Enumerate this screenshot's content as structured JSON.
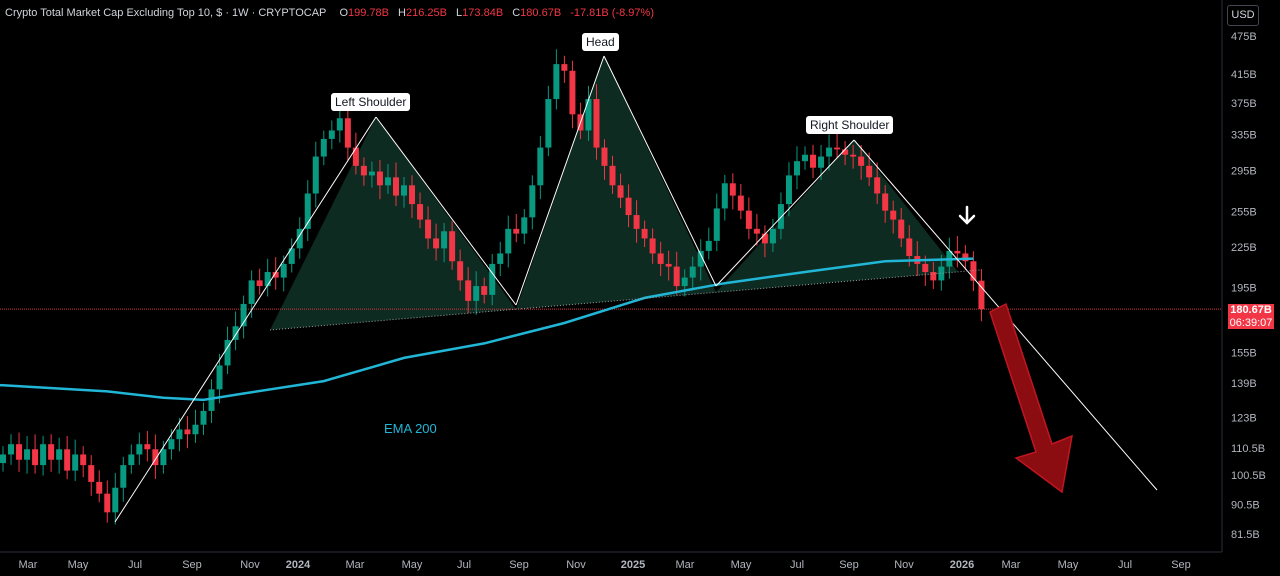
{
  "header": {
    "title": "Crypto Total Market Cap Excluding Top 10, $ · 1W · CRYPTOCAP",
    "ohlc": [
      {
        "label": "O",
        "value": "199.78B"
      },
      {
        "label": "H",
        "value": "216.25B"
      },
      {
        "label": "L",
        "value": "173.84B"
      },
      {
        "label": "C",
        "value": "180.67B"
      }
    ],
    "change": "-17.81B (-8.97%)"
  },
  "currency_button": "USD",
  "last_price": {
    "price": "180.67B",
    "countdown": "06:39:07"
  },
  "colors": {
    "up": "#089981",
    "down": "#f23645",
    "ema": "#21b6d6",
    "pattern_fill": "#0f3326",
    "arrow": "#8b0d12",
    "grid": "#1c1f26"
  },
  "chart_data": {
    "type": "candlestick",
    "title": "Crypto Total Market Cap Excluding Top 10",
    "yscale": "log",
    "y_ticks": [
      "475B",
      "415B",
      "375B",
      "335B",
      "295B",
      "255B",
      "225B",
      "195B",
      "155B",
      "139B",
      "123B",
      "110.5B",
      "100.5B",
      "90.5B",
      "81.5B"
    ],
    "x_ticks": [
      "Mar",
      "May",
      "Jul",
      "Sep",
      "Nov",
      "2024",
      "Mar",
      "May",
      "Jul",
      "Sep",
      "Nov",
      "2025",
      "Mar",
      "May",
      "Jul",
      "Sep",
      "Nov",
      "2026",
      "Mar",
      "May",
      "Jul",
      "Sep"
    ],
    "last_close": 180.67,
    "candles_close_approx": [
      [
        0,
        108
      ],
      [
        1,
        112
      ],
      [
        2,
        106
      ],
      [
        3,
        110
      ],
      [
        4,
        104
      ],
      [
        5,
        112
      ],
      [
        6,
        106
      ],
      [
        7,
        110
      ],
      [
        8,
        102
      ],
      [
        9,
        108
      ],
      [
        10,
        104
      ],
      [
        11,
        98
      ],
      [
        12,
        94
      ],
      [
        13,
        88
      ],
      [
        14,
        96
      ],
      [
        15,
        104
      ],
      [
        16,
        108
      ],
      [
        17,
        112
      ],
      [
        18,
        110
      ],
      [
        19,
        104
      ],
      [
        20,
        110
      ],
      [
        21,
        114
      ],
      [
        22,
        118
      ],
      [
        23,
        116
      ],
      [
        24,
        120
      ],
      [
        25,
        126
      ],
      [
        26,
        136
      ],
      [
        27,
        148
      ],
      [
        28,
        162
      ],
      [
        29,
        170
      ],
      [
        30,
        184
      ],
      [
        31,
        200
      ],
      [
        32,
        196
      ],
      [
        33,
        206
      ],
      [
        34,
        202
      ],
      [
        35,
        212
      ],
      [
        36,
        224
      ],
      [
        37,
        240
      ],
      [
        38,
        272
      ],
      [
        39,
        310
      ],
      [
        40,
        330
      ],
      [
        41,
        340
      ],
      [
        42,
        355
      ],
      [
        43,
        320
      ],
      [
        44,
        300
      ],
      [
        45,
        290
      ],
      [
        46,
        294
      ],
      [
        47,
        280
      ],
      [
        48,
        288
      ],
      [
        49,
        270
      ],
      [
        50,
        280
      ],
      [
        51,
        262
      ],
      [
        52,
        248
      ],
      [
        53,
        232
      ],
      [
        54,
        224
      ],
      [
        55,
        238
      ],
      [
        56,
        214
      ],
      [
        57,
        200
      ],
      [
        58,
        186
      ],
      [
        59,
        196
      ],
      [
        60,
        190
      ],
      [
        61,
        212
      ],
      [
        62,
        220
      ],
      [
        63,
        240
      ],
      [
        64,
        236
      ],
      [
        65,
        250
      ],
      [
        66,
        280
      ],
      [
        67,
        320
      ],
      [
        68,
        380
      ],
      [
        69,
        430
      ],
      [
        70,
        420
      ],
      [
        71,
        360
      ],
      [
        72,
        340
      ],
      [
        73,
        380
      ],
      [
        74,
        320
      ],
      [
        75,
        300
      ],
      [
        76,
        280
      ],
      [
        77,
        268
      ],
      [
        78,
        252
      ],
      [
        79,
        240
      ],
      [
        80,
        232
      ],
      [
        81,
        220
      ],
      [
        82,
        212
      ],
      [
        83,
        210
      ],
      [
        84,
        196
      ],
      [
        85,
        202
      ],
      [
        86,
        210
      ],
      [
        87,
        222
      ],
      [
        88,
        230
      ],
      [
        89,
        258
      ],
      [
        90,
        282
      ],
      [
        91,
        270
      ],
      [
        92,
        256
      ],
      [
        93,
        240
      ],
      [
        94,
        236
      ],
      [
        95,
        228
      ],
      [
        96,
        240
      ],
      [
        97,
        262
      ],
      [
        98,
        290
      ],
      [
        99,
        305
      ],
      [
        100,
        312
      ],
      [
        101,
        298
      ],
      [
        102,
        310
      ],
      [
        103,
        320
      ],
      [
        104,
        318
      ],
      [
        105,
        312
      ],
      [
        106,
        310
      ],
      [
        107,
        300
      ],
      [
        108,
        288
      ],
      [
        109,
        272
      ],
      [
        110,
        256
      ],
      [
        111,
        248
      ],
      [
        112,
        232
      ],
      [
        113,
        218
      ],
      [
        114,
        212
      ],
      [
        115,
        206
      ],
      [
        116,
        200
      ],
      [
        117,
        210
      ],
      [
        118,
        222
      ],
      [
        119,
        220
      ],
      [
        120,
        214
      ],
      [
        121,
        199.78
      ],
      [
        122,
        180.67
      ]
    ],
    "ema200_approx": [
      [
        0,
        138
      ],
      [
        13,
        135
      ],
      [
        20,
        132
      ],
      [
        25,
        131
      ],
      [
        30,
        134
      ],
      [
        40,
        140
      ],
      [
        50,
        152
      ],
      [
        60,
        160
      ],
      [
        70,
        172
      ],
      [
        80,
        188
      ],
      [
        90,
        198
      ],
      [
        100,
        206
      ],
      [
        110,
        214
      ],
      [
        121,
        216
      ]
    ],
    "annotations": [
      "Left Shoulder",
      "Head",
      "Right Shoulder",
      "EMA 200"
    ]
  }
}
